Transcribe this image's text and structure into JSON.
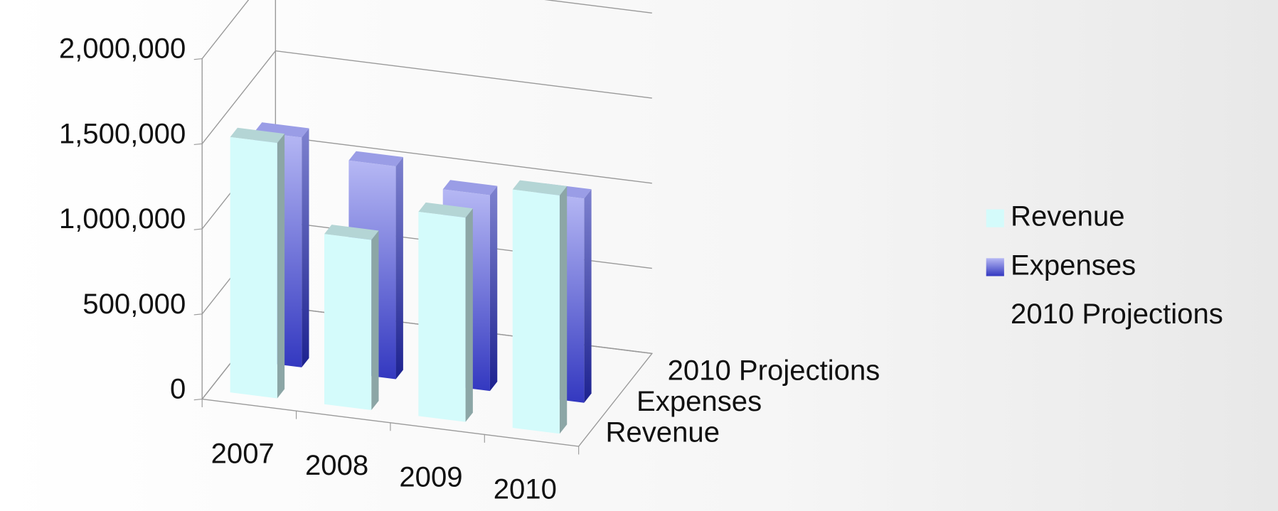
{
  "chart_data": {
    "type": "bar3d",
    "categories": [
      "2007",
      "2008",
      "2009",
      "2010"
    ],
    "series": [
      {
        "name": "Revenue",
        "color": "#d4fbfb",
        "values": [
          1500000,
          1000000,
          1200000,
          1400000
        ]
      },
      {
        "name": "Expenses",
        "color": "#5a5fd8",
        "values": [
          1350000,
          1250000,
          1150000,
          1200000
        ]
      },
      {
        "name": "2010 Projections",
        "values": [
          null,
          null,
          null,
          null
        ]
      }
    ],
    "ylim": [
      0,
      2000000
    ],
    "yticks": [
      0,
      {
        "value": 500000,
        "label": "500,000"
      },
      {
        "value": 1000000,
        "label": "1,000,000"
      },
      {
        "value": 1500000,
        "label": "1,500,000"
      },
      {
        "value": 2000000,
        "label": "2,000,000"
      }
    ],
    "grid": true,
    "legend": "right"
  }
}
